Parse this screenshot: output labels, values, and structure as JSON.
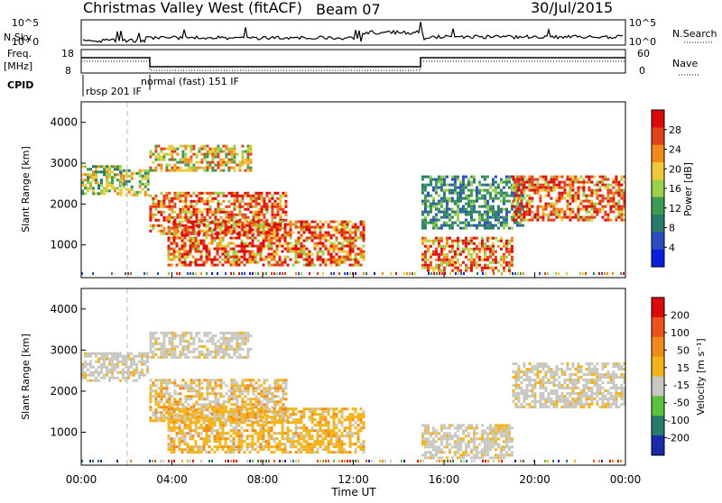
{
  "header": {
    "station": "Christmas Valley West (fitACF)",
    "beam": "Beam 07",
    "date": "30/Jul/2015"
  },
  "top_panels": {
    "nsky_label": "N.Sky",
    "nsky_ticks": [
      "10^5",
      "10^0"
    ],
    "nsearch_label": "N.Search",
    "nsearch_ticks": [
      "10^5",
      "10^0"
    ],
    "freq_label_1": "Freq.",
    "freq_label_2": "[MHz]",
    "freq_ticks": [
      "18",
      "8"
    ],
    "nave_label": "Nave",
    "nave_ticks": [
      "60",
      "0"
    ],
    "cpid_label": "CPID",
    "cpid_segments": [
      "rbsp 201 IF",
      "normal (fast) 151 IF"
    ]
  },
  "chart_data": [
    {
      "type": "heatmap",
      "title": "",
      "ylabel": "Slant Range [km]",
      "xlabel": "",
      "x_ticks": [
        "00:00",
        "04:00",
        "08:00",
        "12:00",
        "16:00",
        "20:00",
        "00:00"
      ],
      "y_ticks": [
        "1000",
        "2000",
        "3000",
        "4000"
      ],
      "ylim": [
        200,
        4500
      ],
      "colorbar": {
        "label": "Power [dB]",
        "ticks": [
          "4",
          "8",
          "12",
          "16",
          "20",
          "24",
          "28"
        ],
        "colors": [
          "#0a1ee0",
          "#2c4cc0",
          "#2a7a6c",
          "#3c9a52",
          "#9ad04a",
          "#f0c838",
          "#f28a1a",
          "#e2401a",
          "#dc0a0a"
        ]
      },
      "bands": [
        {
          "start_hour": 0.0,
          "end_hour": 1.7,
          "range_low": 2250,
          "range_high": 2950,
          "level": "mid"
        },
        {
          "start_hour": 1.7,
          "end_hour": 2.9,
          "range_low": 2250,
          "range_high": 2850,
          "level": "mid"
        },
        {
          "start_hour": 3.0,
          "end_hour": 7.5,
          "range_low": 2800,
          "range_high": 3450,
          "level": "mid-high"
        },
        {
          "start_hour": 3.0,
          "end_hour": 9.0,
          "range_low": 1300,
          "range_high": 2300,
          "level": "high"
        },
        {
          "start_hour": 3.8,
          "end_hour": 12.5,
          "range_low": 500,
          "range_high": 1600,
          "level": "high"
        },
        {
          "start_hour": 15.0,
          "end_hour": 19.0,
          "range_low": 400,
          "range_high": 1200,
          "level": "high"
        },
        {
          "start_hour": 15.0,
          "end_hour": 19.5,
          "range_low": 1400,
          "range_high": 2700,
          "level": "low-mid"
        },
        {
          "start_hour": 19.0,
          "end_hour": 24.0,
          "range_low": 1600,
          "range_high": 2700,
          "level": "high"
        }
      ]
    },
    {
      "type": "heatmap",
      "title": "",
      "ylabel": "Slant Range [km]",
      "xlabel": "Time UT",
      "x_ticks": [
        "00:00",
        "04:00",
        "08:00",
        "12:00",
        "16:00",
        "20:00",
        "00:00"
      ],
      "y_ticks": [
        "1000",
        "2000",
        "3000",
        "4000"
      ],
      "ylim": [
        200,
        4500
      ],
      "colorbar": {
        "label": "Velocity [m s⁻¹]",
        "ticks": [
          "200",
          "100",
          "50",
          "15",
          "-15",
          "-50",
          "-100",
          "-200"
        ],
        "colors": [
          "#1a2aa8",
          "#2a7a6c",
          "#5cc040",
          "#c8c8c0",
          "#f2b41a",
          "#f28a1a",
          "#f0501a",
          "#dc0a0a"
        ]
      },
      "bands": [
        {
          "start_hour": 0.0,
          "end_hour": 2.9,
          "range_low": 2250,
          "range_high": 2950,
          "level": "gray"
        },
        {
          "start_hour": 3.0,
          "end_hour": 7.5,
          "range_low": 2800,
          "range_high": 3450,
          "level": "gray"
        },
        {
          "start_hour": 3.0,
          "end_hour": 9.0,
          "range_low": 1300,
          "range_high": 2300,
          "level": "gray-orange"
        },
        {
          "start_hour": 3.8,
          "end_hour": 12.5,
          "range_low": 500,
          "range_high": 1600,
          "level": "orange"
        },
        {
          "start_hour": 15.0,
          "end_hour": 19.0,
          "range_low": 400,
          "range_high": 1200,
          "level": "gray"
        },
        {
          "start_hour": 19.0,
          "end_hour": 24.0,
          "range_low": 1600,
          "range_high": 2700,
          "level": "gray"
        }
      ]
    }
  ]
}
